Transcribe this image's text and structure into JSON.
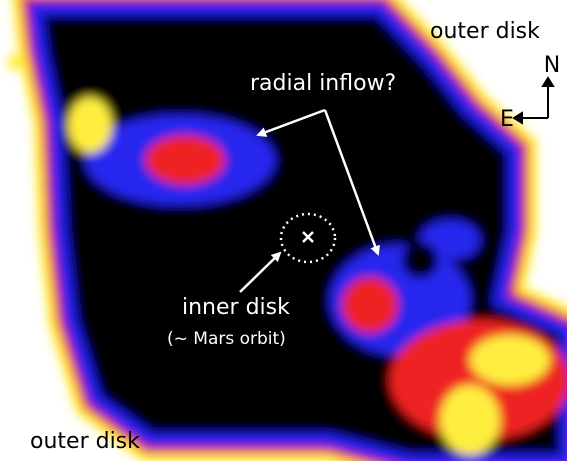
{
  "annotations": {
    "outer_disk_top": "outer disk",
    "radial_inflow": "radial inflow?",
    "inner_disk": "inner disk",
    "inner_disk_note": "(~ Mars orbit)",
    "outer_disk_bottom": "outer disk"
  },
  "compass": {
    "north": "N",
    "east": "E"
  }
}
